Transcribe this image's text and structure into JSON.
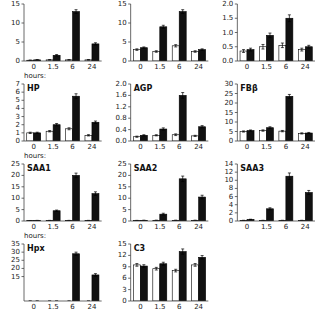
{
  "chart_data": [
    {
      "type": "bar",
      "categories": [
        "0",
        "1.5",
        "6",
        "24"
      ],
      "xlabel": "hours:",
      "series": [
        {
          "color": "#ffffff",
          "values": [
            0.2,
            0.3,
            0.3,
            0.3
          ],
          "errors": [
            0.05,
            0.05,
            0.05,
            0.05
          ]
        },
        {
          "color": "#111111",
          "values": [
            0.3,
            1.5,
            13.0,
            4.5
          ],
          "errors": [
            0.05,
            0.2,
            0.5,
            0.3
          ]
        }
      ],
      "ylim": [
        0,
        15
      ],
      "yticks": [
        0,
        5,
        10,
        15
      ]
    },
    {
      "type": "bar",
      "categories": [
        "0",
        "1.5",
        "6",
        "24"
      ],
      "series": [
        {
          "color": "#ffffff",
          "values": [
            3.0,
            2.5,
            4.0,
            2.5
          ],
          "errors": [
            0.2,
            0.2,
            0.3,
            0.2
          ]
        },
        {
          "color": "#111111",
          "values": [
            3.5,
            9.0,
            13.0,
            3.0
          ],
          "errors": [
            0.2,
            0.4,
            0.5,
            0.2
          ]
        }
      ],
      "ylim": [
        0,
        15
      ],
      "yticks": [
        0,
        5,
        10,
        15
      ]
    },
    {
      "type": "bar",
      "categories": [
        "0",
        "1.5",
        "6",
        "24"
      ],
      "series": [
        {
          "color": "#ffffff",
          "values": [
            0.35,
            0.5,
            0.55,
            0.4
          ],
          "errors": [
            0.05,
            0.08,
            0.08,
            0.05
          ]
        },
        {
          "color": "#111111",
          "values": [
            0.4,
            0.9,
            1.5,
            0.5
          ],
          "errors": [
            0.05,
            0.08,
            0.12,
            0.05
          ]
        }
      ],
      "ylim": [
        0,
        2.0
      ],
      "yticks": [
        {
          "value": 0,
          "label": "0.0"
        },
        0.5,
        {
          "value": 1.0,
          "label": "1.0"
        },
        1.5,
        {
          "value": 2.0,
          "label": "2.0"
        }
      ]
    },
    {
      "type": "bar",
      "title": "HP",
      "categories": [
        "0",
        "1.5",
        "6",
        "24"
      ],
      "xlabel": "hours:",
      "series": [
        {
          "color": "#ffffff",
          "values": [
            1.0,
            1.2,
            1.5,
            0.7
          ],
          "errors": [
            0.08,
            0.08,
            0.12,
            0.08
          ]
        },
        {
          "color": "#111111",
          "values": [
            1.0,
            2.0,
            5.5,
            2.3
          ],
          "errors": [
            0.08,
            0.15,
            0.3,
            0.15
          ]
        }
      ],
      "ylim": [
        0,
        7
      ],
      "yticks": [
        0,
        1,
        2,
        3,
        4,
        5,
        6,
        7
      ]
    },
    {
      "type": "bar",
      "title": "AGP",
      "categories": [
        "0",
        "1.5",
        "6",
        "24"
      ],
      "series": [
        {
          "color": "#ffffff",
          "values": [
            0.15,
            0.2,
            0.22,
            0.18
          ],
          "errors": [
            0.02,
            0.02,
            0.03,
            0.02
          ]
        },
        {
          "color": "#111111",
          "values": [
            0.2,
            0.42,
            1.6,
            0.5
          ],
          "errors": [
            0.02,
            0.04,
            0.1,
            0.04
          ]
        }
      ],
      "ylim": [
        0,
        2.0
      ],
      "yticks": [
        {
          "value": 0,
          "label": "0.0"
        },
        0.4,
        0.8,
        1.2,
        1.6,
        {
          "value": 2.0,
          "label": "2.0"
        }
      ]
    },
    {
      "type": "bar",
      "title": "FBβ",
      "categories": [
        "0",
        "1.5",
        "6",
        "24"
      ],
      "series": [
        {
          "color": "#ffffff",
          "values": [
            5.0,
            5.5,
            5.2,
            4.0
          ],
          "errors": [
            0.3,
            0.35,
            0.35,
            0.3
          ]
        },
        {
          "color": "#111111",
          "values": [
            5.5,
            7.0,
            23.5,
            4.2
          ],
          "errors": [
            0.3,
            0.5,
            1.0,
            0.3
          ]
        }
      ],
      "ylim": [
        0,
        30
      ],
      "yticks": [
        0,
        5,
        10,
        15,
        20,
        25,
        30
      ]
    },
    {
      "type": "bar",
      "title": "SAA1",
      "categories": [
        "0",
        "1.5",
        "6",
        "24"
      ],
      "xlabel": "hours:",
      "series": [
        {
          "color": "#ffffff",
          "values": [
            0.2,
            0.25,
            0.25,
            0.25
          ],
          "errors": [
            0.02,
            0.02,
            0.02,
            0.02
          ]
        },
        {
          "color": "#111111",
          "values": [
            0.25,
            4.5,
            20.0,
            12.0
          ],
          "errors": [
            0.02,
            0.3,
            1.0,
            0.8
          ]
        }
      ],
      "ylim": [
        0,
        25
      ],
      "yticks": [
        0,
        5,
        10,
        15,
        20,
        25
      ]
    },
    {
      "type": "bar",
      "title": "SAA2",
      "categories": [
        "0",
        "1.5",
        "6",
        "24"
      ],
      "series": [
        {
          "color": "#ffffff",
          "values": [
            0.25,
            0.3,
            0.3,
            0.3
          ],
          "errors": [
            0.02,
            0.03,
            0.03,
            0.03
          ]
        },
        {
          "color": "#111111",
          "values": [
            0.3,
            3.0,
            18.5,
            10.5
          ],
          "errors": [
            0.02,
            0.4,
            1.2,
            0.8
          ]
        }
      ],
      "ylim": [
        0,
        25
      ],
      "yticks": [
        0,
        5,
        10,
        15,
        20,
        25
      ]
    },
    {
      "type": "bar",
      "title": "SAA3",
      "categories": [
        "0",
        "1.5",
        "6",
        "24"
      ],
      "series": [
        {
          "color": "#ffffff",
          "values": [
            0.15,
            0.15,
            0.15,
            0.15
          ],
          "errors": [
            0.02,
            0.02,
            0.02,
            0.02
          ]
        },
        {
          "color": "#111111",
          "values": [
            0.4,
            3.0,
            11.0,
            7.0
          ],
          "errors": [
            0.04,
            0.25,
            0.8,
            0.5
          ]
        }
      ],
      "ylim": [
        0,
        14
      ],
      "yticks": [
        0,
        2,
        4,
        6,
        8,
        10,
        12,
        14
      ]
    },
    {
      "type": "bar",
      "title": "Hpx",
      "categories": [
        "0",
        "1.5",
        "6",
        "24"
      ],
      "series": [
        {
          "color": "#ffffff",
          "values": [
            0.0,
            0.0,
            0.0,
            0.0
          ],
          "errors": [
            0.0,
            0.0,
            0.0,
            0.0
          ]
        },
        {
          "color": "#111111",
          "values": [
            0.0,
            0.0,
            29.0,
            16.0
          ],
          "errors": [
            0.0,
            0.0,
            1.0,
            0.8
          ]
        }
      ],
      "ylim": [
        0,
        35
      ],
      "yticks": [
        15,
        20,
        25,
        30,
        35
      ]
    },
    {
      "type": "bar",
      "title": "C3",
      "categories": [
        "0",
        "1.5",
        "6",
        "24"
      ],
      "series": [
        {
          "color": "#ffffff",
          "values": [
            9.5,
            8.5,
            8.0,
            9.5
          ],
          "errors": [
            0.35,
            0.35,
            0.35,
            0.35
          ]
        },
        {
          "color": "#111111",
          "values": [
            9.2,
            9.8,
            13.0,
            11.5
          ],
          "errors": [
            0.35,
            0.4,
            0.7,
            0.45
          ]
        }
      ],
      "ylim": [
        0,
        15
      ],
      "yticks": [
        0,
        3,
        6,
        9,
        12,
        15
      ]
    }
  ]
}
